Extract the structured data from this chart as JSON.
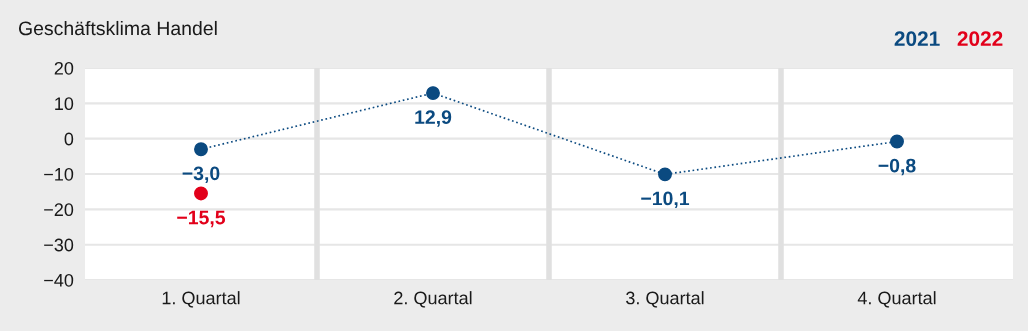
{
  "chart_data": {
    "type": "line",
    "title": "Geschäftsklima Handel",
    "categories": [
      "1. Quartal",
      "2. Quartal",
      "3. Quartal",
      "4. Quartal"
    ],
    "series": [
      {
        "name": "2021",
        "color": "#0b4a80",
        "values": [
          -3.0,
          12.9,
          -10.1,
          -0.8
        ],
        "value_labels": [
          "−3,0",
          "12,9",
          "−10,1",
          "−0,8"
        ],
        "line_style": "dotted",
        "marker": "circle"
      },
      {
        "name": "2022",
        "type": "scatter",
        "color": "#e2001a",
        "values": [
          -15.5,
          null,
          null,
          null
        ],
        "value_labels": [
          "−15,5",
          null,
          null,
          null
        ],
        "marker": "circle"
      }
    ],
    "ylim": [
      -40,
      20
    ],
    "yticks": [
      {
        "value": -40,
        "label": "−40"
      },
      {
        "value": -30,
        "label": "−30"
      },
      {
        "value": -20,
        "label": "−20"
      },
      {
        "value": -10,
        "label": "−10"
      },
      0,
      10,
      20
    ],
    "grid": true,
    "legend": "top right"
  }
}
